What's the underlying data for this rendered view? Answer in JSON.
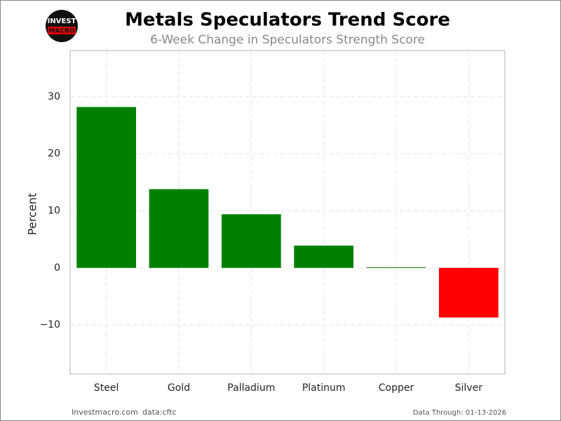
{
  "chart_data": {
    "type": "bar",
    "title": "Metals Speculators Trend Score",
    "subtitle": "6-Week Change in Speculators Strength Score",
    "y_label": "Percent",
    "logo": {
      "top": "INVEST",
      "bottom": "MACRO"
    },
    "footer": {
      "left": "Investmacro.com",
      "source": "data:cftc",
      "right": "Data Through: 01-13-2026"
    },
    "categories": [
      "Steel",
      "Gold",
      "Palladium",
      "Platinum",
      "Copper",
      "Silver"
    ],
    "values": [
      28.2,
      13.8,
      9.4,
      3.9,
      0.1,
      -8.7
    ],
    "colors": [
      "#008000",
      "#008000",
      "#008000",
      "#008000",
      "#008000",
      "#ff0000"
    ],
    "ylim": [
      -18.6,
      38.1
    ],
    "yticks": [
      -10,
      0,
      10,
      20,
      30
    ],
    "yticks_labels": [
      {
        "value": -10,
        "label": "−10"
      }
    ],
    "grid": true
  }
}
